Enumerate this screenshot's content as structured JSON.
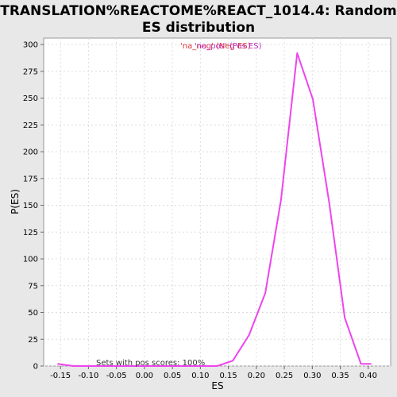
{
  "chart_data": {
    "type": "line",
    "title_line1": "TRANSLATION%REACTOME%REACT_1014.4: Random",
    "title_line2": "ES distribution",
    "xlabel": "ES",
    "ylabel": "P(ES)",
    "xlim": [
      -0.18,
      0.44
    ],
    "ylim": [
      0,
      306
    ],
    "xticks": [
      "-0.15",
      "-0.10",
      "-0.05",
      "0.00",
      "0.05",
      "0.10",
      "0.15",
      "0.20",
      "0.25",
      "0.30",
      "0.35",
      "0.40"
    ],
    "yticks": [
      "0",
      "25",
      "50",
      "75",
      "100",
      "125",
      "150",
      "175",
      "200",
      "225",
      "250",
      "275",
      "300"
    ],
    "grid": true,
    "legend": {
      "position": "top-center",
      "entries": [
        {
          "text": "'na_neg' (Neg ES)",
          "color": "#dd3333"
        },
        {
          "text": "'na_pos' (Pos ES)",
          "color": "#bb33bb"
        }
      ]
    },
    "annotation": "Sets with pos scores: 100%",
    "series": [
      {
        "color": "#ee44ee",
        "x": [
          -0.155,
          -0.127,
          -0.098,
          -0.07,
          -0.041,
          -0.013,
          0.016,
          0.044,
          0.072,
          0.101,
          0.13,
          0.158,
          0.187,
          0.216,
          0.244,
          0.273,
          0.301,
          0.33,
          0.358,
          0.387,
          0.405
        ],
        "y": [
          2,
          0,
          0,
          0,
          0,
          0,
          0,
          0,
          0,
          0,
          0,
          5,
          29,
          68,
          155,
          292,
          249,
          153,
          45,
          2,
          2
        ]
      }
    ]
  }
}
